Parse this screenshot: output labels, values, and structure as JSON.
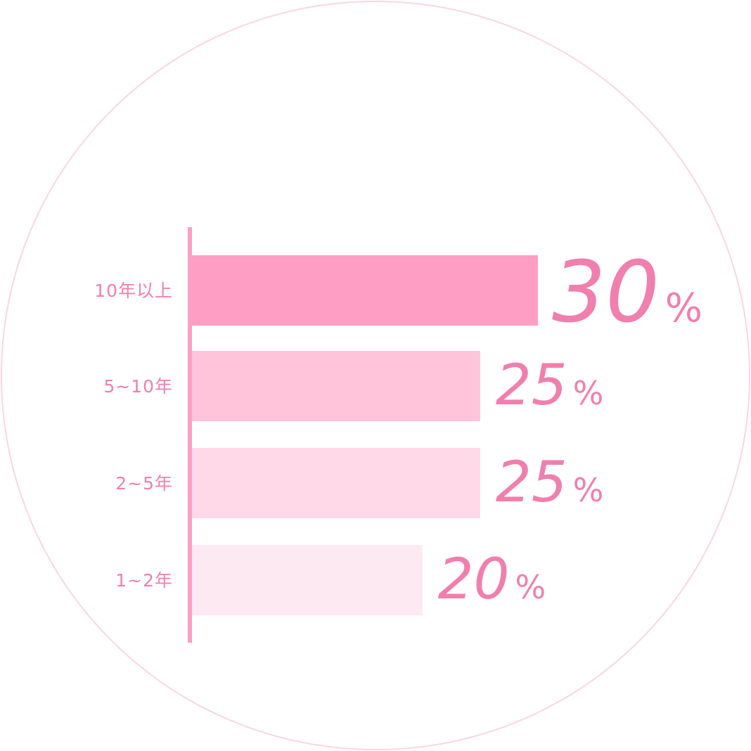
{
  "chart_data": {
    "type": "bar",
    "orientation": "horizontal",
    "categories": [
      "10年以上",
      "5~10年",
      "2~5年",
      "1~2年"
    ],
    "values": [
      30,
      25,
      25,
      20
    ],
    "value_suffix": "%",
    "xlim": [
      0,
      30
    ],
    "grid": false,
    "legend": "none",
    "colors": {
      "bars": [
        "#ff9ec4",
        "#ffc4da",
        "#ffd9e7",
        "#fde9f1"
      ],
      "axis": "#ff9ec4",
      "text": "#f07fae",
      "circle": "#f9d6e3"
    }
  }
}
